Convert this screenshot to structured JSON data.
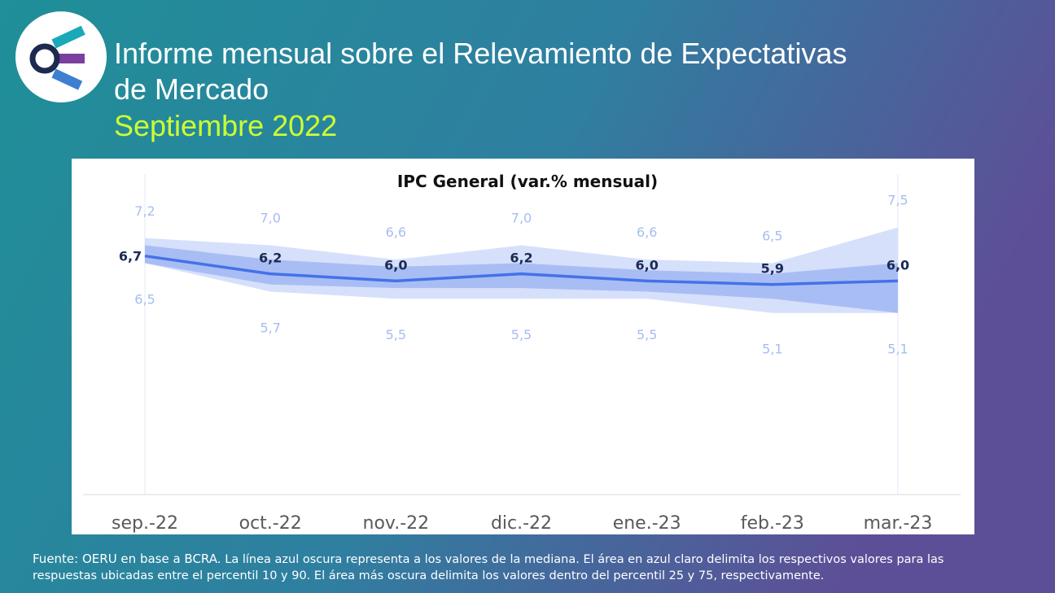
{
  "header": {
    "title_line1": "Informe mensual sobre el Relevamiento de Expectativas",
    "title_line2": "de Mercado",
    "subtitle": "Septiembre 2022"
  },
  "chart_data": {
    "type": "line",
    "title": "IPC General (var.% mensual)",
    "categories": [
      "sep.-22",
      "oct.-22",
      "nov.-22",
      "dic.-22",
      "ene.-23",
      "feb.-23",
      "mar.-23"
    ],
    "series": [
      {
        "color": "#4472e8",
        "values": [
          6.7,
          6.2,
          6.0,
          6.2,
          6.0,
          5.9,
          6.0
        ],
        "value_labels": [
          "6,7",
          "6,2",
          "6,0",
          "6,2",
          "6,0",
          "5,9",
          "6,0"
        ]
      }
    ],
    "p90": {
      "color": "#d6e0fb",
      "values": [
        7.2,
        7.0,
        6.6,
        7.0,
        6.6,
        6.5,
        7.5
      ],
      "value_labels": [
        "7,2",
        "7,0",
        "6,6",
        "7,0",
        "6,6",
        "6,5",
        "7,5"
      ]
    },
    "p10": {
      "color": "#d6e0fb",
      "values": [
        6.5,
        5.7,
        5.5,
        5.5,
        5.5,
        5.1,
        5.1
      ],
      "value_labels": [
        "6,5",
        "5,7",
        "5,5",
        "5,5",
        "5,5",
        "5,1",
        "5,1"
      ]
    },
    "p75": {
      "color": "#a9bdf5",
      "values": [
        7.0,
        6.6,
        6.4,
        6.5,
        6.3,
        6.2,
        6.5
      ]
    },
    "p25": {
      "color": "#a9bdf5",
      "values": [
        6.5,
        5.9,
        5.8,
        5.8,
        5.7,
        5.5,
        5.1
      ]
    },
    "ylim": [
      0,
      9
    ]
  },
  "footer": {
    "source_label": "Fuente: OERU en base a BCRA.",
    "line1": "La línea azul oscura representa a los valores de la mediana. El área en azul claro delimita los respectivos valores para las",
    "line2": "respuestas ubicadas entre el percentil 10 y 90. El área más oscura delimita los valores dentro del percentil 25 y 75, respectivamente."
  }
}
